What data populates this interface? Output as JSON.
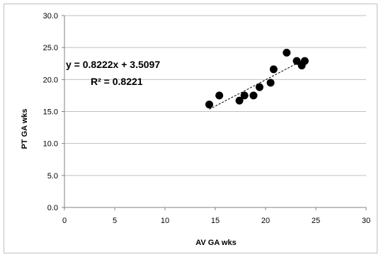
{
  "chart_data": {
    "type": "scatter",
    "title": "",
    "xlabel": "AV GA wks",
    "ylabel": "PT GA wks",
    "xlim": [
      0,
      30
    ],
    "ylim": [
      0,
      30
    ],
    "xticks": [
      "0",
      "5",
      "10",
      "15",
      "20",
      "25",
      "30"
    ],
    "yticks": [
      "0.0",
      "5.0",
      "10.0",
      "15.0",
      "20.0",
      "25.0",
      "30.0"
    ],
    "grid": "horizontal",
    "legend": "none",
    "marker_color": "#000000",
    "points": [
      {
        "x": 14.4,
        "y": 16.1
      },
      {
        "x": 15.4,
        "y": 17.5
      },
      {
        "x": 17.4,
        "y": 16.7
      },
      {
        "x": 17.9,
        "y": 17.5
      },
      {
        "x": 18.8,
        "y": 17.5
      },
      {
        "x": 19.4,
        "y": 18.8
      },
      {
        "x": 20.5,
        "y": 19.5
      },
      {
        "x": 20.8,
        "y": 21.6
      },
      {
        "x": 22.1,
        "y": 24.2
      },
      {
        "x": 23.1,
        "y": 22.9
      },
      {
        "x": 23.6,
        "y": 22.2
      },
      {
        "x": 23.9,
        "y": 22.9
      }
    ],
    "trendline": {
      "type": "linear",
      "slope": 0.8222,
      "intercept": 3.5097,
      "x_range": [
        14.4,
        23.9
      ],
      "style": "dashed",
      "equation_label": "y = 0.8222x + 3.5097",
      "r2_label": "R² = 0.8221"
    }
  }
}
